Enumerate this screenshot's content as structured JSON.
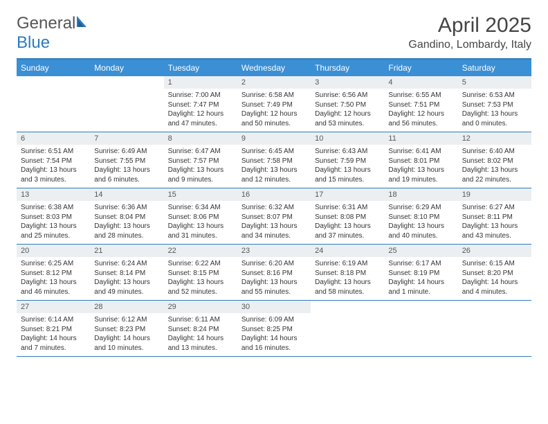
{
  "brand": {
    "part1": "General",
    "part2": "Blue"
  },
  "title": "April 2025",
  "location": "Gandino, Lombardy, Italy",
  "colors": {
    "header_bar": "#3b8fd4",
    "border": "#2b7bbf",
    "daynum_bg": "#eceff1",
    "text": "#333333",
    "title_text": "#444444"
  },
  "dow": [
    "Sunday",
    "Monday",
    "Tuesday",
    "Wednesday",
    "Thursday",
    "Friday",
    "Saturday"
  ],
  "weeks": [
    [
      null,
      null,
      {
        "n": "1",
        "sr": "Sunrise: 7:00 AM",
        "ss": "Sunset: 7:47 PM",
        "dl": "Daylight: 12 hours and 47 minutes."
      },
      {
        "n": "2",
        "sr": "Sunrise: 6:58 AM",
        "ss": "Sunset: 7:49 PM",
        "dl": "Daylight: 12 hours and 50 minutes."
      },
      {
        "n": "3",
        "sr": "Sunrise: 6:56 AM",
        "ss": "Sunset: 7:50 PM",
        "dl": "Daylight: 12 hours and 53 minutes."
      },
      {
        "n": "4",
        "sr": "Sunrise: 6:55 AM",
        "ss": "Sunset: 7:51 PM",
        "dl": "Daylight: 12 hours and 56 minutes."
      },
      {
        "n": "5",
        "sr": "Sunrise: 6:53 AM",
        "ss": "Sunset: 7:53 PM",
        "dl": "Daylight: 13 hours and 0 minutes."
      }
    ],
    [
      {
        "n": "6",
        "sr": "Sunrise: 6:51 AM",
        "ss": "Sunset: 7:54 PM",
        "dl": "Daylight: 13 hours and 3 minutes."
      },
      {
        "n": "7",
        "sr": "Sunrise: 6:49 AM",
        "ss": "Sunset: 7:55 PM",
        "dl": "Daylight: 13 hours and 6 minutes."
      },
      {
        "n": "8",
        "sr": "Sunrise: 6:47 AM",
        "ss": "Sunset: 7:57 PM",
        "dl": "Daylight: 13 hours and 9 minutes."
      },
      {
        "n": "9",
        "sr": "Sunrise: 6:45 AM",
        "ss": "Sunset: 7:58 PM",
        "dl": "Daylight: 13 hours and 12 minutes."
      },
      {
        "n": "10",
        "sr": "Sunrise: 6:43 AM",
        "ss": "Sunset: 7:59 PM",
        "dl": "Daylight: 13 hours and 15 minutes."
      },
      {
        "n": "11",
        "sr": "Sunrise: 6:41 AM",
        "ss": "Sunset: 8:01 PM",
        "dl": "Daylight: 13 hours and 19 minutes."
      },
      {
        "n": "12",
        "sr": "Sunrise: 6:40 AM",
        "ss": "Sunset: 8:02 PM",
        "dl": "Daylight: 13 hours and 22 minutes."
      }
    ],
    [
      {
        "n": "13",
        "sr": "Sunrise: 6:38 AM",
        "ss": "Sunset: 8:03 PM",
        "dl": "Daylight: 13 hours and 25 minutes."
      },
      {
        "n": "14",
        "sr": "Sunrise: 6:36 AM",
        "ss": "Sunset: 8:04 PM",
        "dl": "Daylight: 13 hours and 28 minutes."
      },
      {
        "n": "15",
        "sr": "Sunrise: 6:34 AM",
        "ss": "Sunset: 8:06 PM",
        "dl": "Daylight: 13 hours and 31 minutes."
      },
      {
        "n": "16",
        "sr": "Sunrise: 6:32 AM",
        "ss": "Sunset: 8:07 PM",
        "dl": "Daylight: 13 hours and 34 minutes."
      },
      {
        "n": "17",
        "sr": "Sunrise: 6:31 AM",
        "ss": "Sunset: 8:08 PM",
        "dl": "Daylight: 13 hours and 37 minutes."
      },
      {
        "n": "18",
        "sr": "Sunrise: 6:29 AM",
        "ss": "Sunset: 8:10 PM",
        "dl": "Daylight: 13 hours and 40 minutes."
      },
      {
        "n": "19",
        "sr": "Sunrise: 6:27 AM",
        "ss": "Sunset: 8:11 PM",
        "dl": "Daylight: 13 hours and 43 minutes."
      }
    ],
    [
      {
        "n": "20",
        "sr": "Sunrise: 6:25 AM",
        "ss": "Sunset: 8:12 PM",
        "dl": "Daylight: 13 hours and 46 minutes."
      },
      {
        "n": "21",
        "sr": "Sunrise: 6:24 AM",
        "ss": "Sunset: 8:14 PM",
        "dl": "Daylight: 13 hours and 49 minutes."
      },
      {
        "n": "22",
        "sr": "Sunrise: 6:22 AM",
        "ss": "Sunset: 8:15 PM",
        "dl": "Daylight: 13 hours and 52 minutes."
      },
      {
        "n": "23",
        "sr": "Sunrise: 6:20 AM",
        "ss": "Sunset: 8:16 PM",
        "dl": "Daylight: 13 hours and 55 minutes."
      },
      {
        "n": "24",
        "sr": "Sunrise: 6:19 AM",
        "ss": "Sunset: 8:18 PM",
        "dl": "Daylight: 13 hours and 58 minutes."
      },
      {
        "n": "25",
        "sr": "Sunrise: 6:17 AM",
        "ss": "Sunset: 8:19 PM",
        "dl": "Daylight: 14 hours and 1 minute."
      },
      {
        "n": "26",
        "sr": "Sunrise: 6:15 AM",
        "ss": "Sunset: 8:20 PM",
        "dl": "Daylight: 14 hours and 4 minutes."
      }
    ],
    [
      {
        "n": "27",
        "sr": "Sunrise: 6:14 AM",
        "ss": "Sunset: 8:21 PM",
        "dl": "Daylight: 14 hours and 7 minutes."
      },
      {
        "n": "28",
        "sr": "Sunrise: 6:12 AM",
        "ss": "Sunset: 8:23 PM",
        "dl": "Daylight: 14 hours and 10 minutes."
      },
      {
        "n": "29",
        "sr": "Sunrise: 6:11 AM",
        "ss": "Sunset: 8:24 PM",
        "dl": "Daylight: 14 hours and 13 minutes."
      },
      {
        "n": "30",
        "sr": "Sunrise: 6:09 AM",
        "ss": "Sunset: 8:25 PM",
        "dl": "Daylight: 14 hours and 16 minutes."
      },
      null,
      null,
      null
    ]
  ]
}
